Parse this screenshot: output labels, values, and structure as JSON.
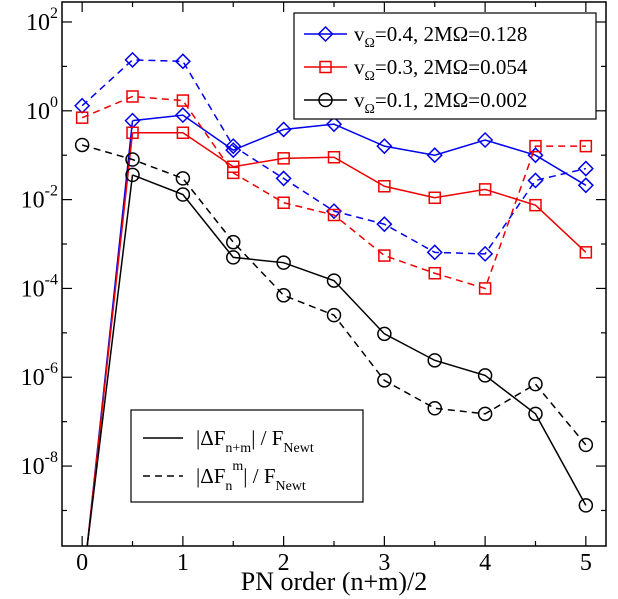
{
  "chart_data": {
    "type": "line",
    "xlabel": "PN order (n+m)/2",
    "ylabel": "",
    "xlim": [
      -0.2,
      5.2
    ],
    "ylim_log10": [
      -9.8,
      2.45
    ],
    "log_y": true,
    "x_ticks": [
      "0",
      "1",
      "2",
      "3",
      "4",
      "5"
    ],
    "y_tick_labels": [
      {
        "base": "10",
        "exp": "2"
      },
      {
        "base": "10",
        "exp": "0"
      },
      {
        "base": "10",
        "exp": "-2"
      },
      {
        "base": "10",
        "exp": "-4"
      },
      {
        "base": "10",
        "exp": "-6"
      },
      {
        "base": "10",
        "exp": "-8"
      }
    ],
    "grid": false,
    "legend_top": {
      "placement": "top-right",
      "entries": [
        {
          "v": "v",
          "vsub": "Ω",
          "rest": "=0.4, 2MΩ=0.128",
          "color": "#0000ee",
          "marker": "diamond"
        },
        {
          "v": "v",
          "vsub": "Ω",
          "rest": "=0.3, 2MΩ=0.054",
          "color": "#ee0000",
          "marker": "square"
        },
        {
          "v": "v",
          "vsub": "Ω",
          "rest": "=0.1, 2MΩ=0.002",
          "color": "#000000",
          "marker": "circle"
        }
      ]
    },
    "legend_bottom": {
      "placement": "bottom-left",
      "entries": [
        {
          "style": "solid",
          "pre": "|ΔF",
          "sub": "n+m",
          "sup": "",
          "post": "| / F",
          "sub2": "Newt"
        },
        {
          "style": "dashed",
          "pre": "|ΔF",
          "sub": "n",
          "sup": "m",
          "post": "| / F",
          "sub2": "Newt"
        }
      ]
    },
    "series": [
      {
        "group": 0.4,
        "style": "solid",
        "color": "#0000ee",
        "marker": "diamond",
        "x": [
          0.5,
          1,
          1.5,
          2,
          2.5,
          3,
          3.5,
          4,
          4.5,
          5
        ],
        "y": [
          0.6,
          0.8,
          0.13,
          0.38,
          0.5,
          0.16,
          0.1,
          0.22,
          0.1,
          0.021
        ]
      },
      {
        "group": 0.4,
        "style": "dashed",
        "color": "#0000ee",
        "marker": "diamond",
        "x": [
          0,
          0.5,
          1,
          1.5,
          2,
          2.5,
          3,
          3.5,
          4,
          4.5,
          5
        ],
        "y": [
          1.3,
          14,
          13,
          0.16,
          0.03,
          0.0055,
          0.0028,
          0.00065,
          0.0006,
          0.027,
          0.05
        ]
      },
      {
        "group": 0.3,
        "style": "solid",
        "color": "#ee0000",
        "marker": "square",
        "x": [
          0.5,
          1,
          1.5,
          2,
          2.5,
          3,
          3.5,
          4,
          4.5,
          5
        ],
        "y": [
          0.32,
          0.32,
          0.055,
          0.085,
          0.09,
          0.02,
          0.011,
          0.017,
          0.0075,
          0.00065
        ]
      },
      {
        "group": 0.3,
        "style": "dashed",
        "color": "#ee0000",
        "marker": "square",
        "x": [
          0,
          0.5,
          1,
          1.5,
          2,
          2.5,
          3,
          3.5,
          4,
          4.5,
          5
        ],
        "y": [
          0.7,
          2.1,
          1.7,
          0.04,
          0.0085,
          0.0045,
          0.00055,
          0.00022,
          0.0001,
          0.16,
          0.16
        ]
      },
      {
        "group": 0.1,
        "style": "solid",
        "color": "#000000",
        "marker": "circle",
        "x": [
          0.5,
          1,
          1.5,
          2,
          2.5,
          3,
          3.5,
          4,
          4.5,
          5
        ],
        "y": [
          0.036,
          0.013,
          0.0005,
          0.00038,
          0.00015,
          9.5e-06,
          2.4e-06,
          1.1e-06,
          1.5e-07,
          1.3e-09
        ]
      },
      {
        "group": 0.1,
        "style": "dashed",
        "color": "#000000",
        "marker": "circle",
        "x": [
          0,
          0.5,
          1,
          1.5,
          2,
          2.5,
          3,
          3.5,
          4,
          4.5,
          5
        ],
        "y": [
          0.17,
          0.08,
          0.03,
          0.0011,
          7e-05,
          2.5e-05,
          8.5e-07,
          2e-07,
          1.5e-07,
          7e-07,
          3e-08
        ]
      }
    ],
    "drop_segments": [
      {
        "color": "#0000ee",
        "from": [
          0.5,
          0.6
        ],
        "to": [
          0.05,
          1.58e-10
        ]
      },
      {
        "color": "#ee0000",
        "from": [
          0.5,
          0.32
        ],
        "to": [
          0.05,
          1.58e-10
        ]
      },
      {
        "color": "#000000",
        "from": [
          0.5,
          0.036
        ],
        "to": [
          0.05,
          1.58e-10
        ]
      }
    ]
  }
}
